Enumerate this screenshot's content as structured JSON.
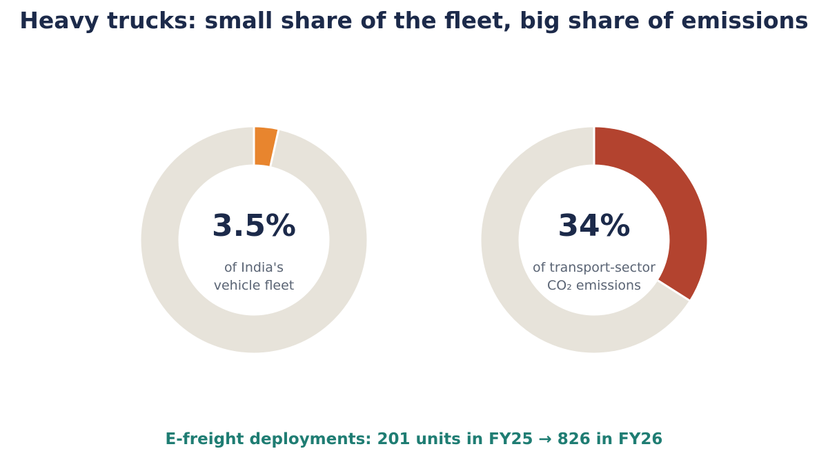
{
  "title": "Heavy trucks: small share of the fleet, big share of emissions",
  "footnote": "E-freight deployments: 201 units in FY25 → 826 in FY26",
  "colors": {
    "title": "#1c2a4a",
    "remainder": "#e7e3da",
    "fleet_accent": "#e8852e",
    "emissions_accent": "#b3432f",
    "footnote": "#1f7d73",
    "label": "#5a6474"
  },
  "chart_data": [
    {
      "type": "pie",
      "style": "donut",
      "value": 3.5,
      "remainder": 96.5,
      "unit": "%",
      "center_value": "3.5%",
      "label_lines": [
        "of India's",
        "vehicle fleet"
      ],
      "accent_color": "#e8852e"
    },
    {
      "type": "pie",
      "style": "donut",
      "value": 34,
      "remainder": 66,
      "unit": "%",
      "center_value": "34%",
      "label_lines": [
        "of transport-sector",
        "CO₂ emissions"
      ],
      "accent_color": "#b3432f"
    }
  ]
}
